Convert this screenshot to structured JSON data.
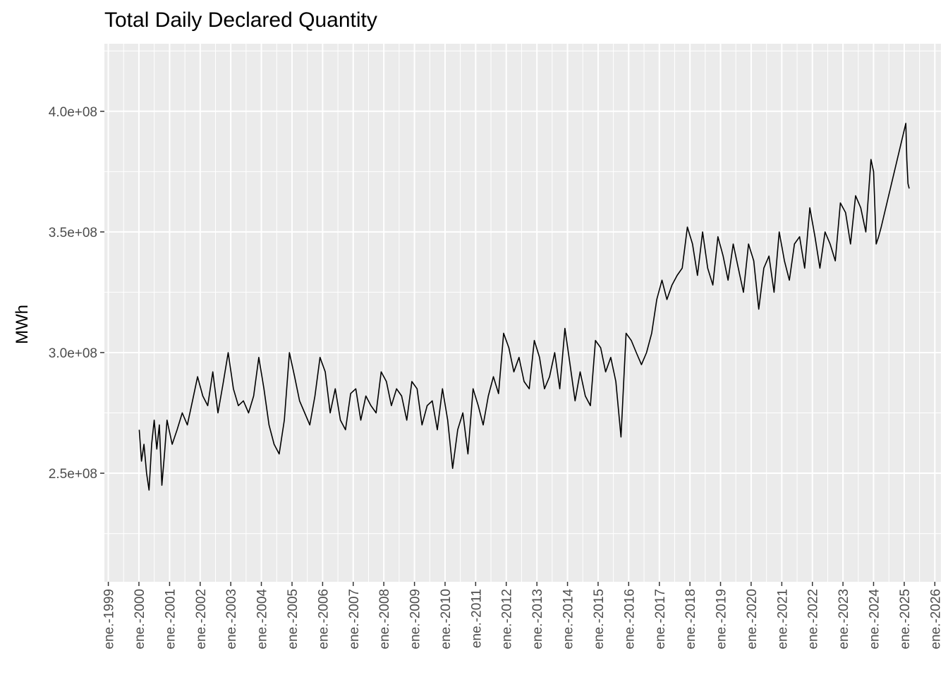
{
  "chart_data": {
    "type": "line",
    "title": "Total Daily Declared Quantity",
    "xlabel": "",
    "ylabel": "MWh",
    "xlim": [
      "1998-11-15",
      "2026-03-15"
    ],
    "ylim": [
      205000000,
      428000000
    ],
    "grid": true,
    "legend": "none",
    "y_ticks": [
      {
        "value": 250000000,
        "label": "2.5e+08"
      },
      {
        "value": 300000000,
        "label": "3.0e+08"
      },
      {
        "value": 350000000,
        "label": "3.5e+08"
      },
      {
        "value": 400000000,
        "label": "4.0e+08"
      }
    ],
    "x_ticks": [
      {
        "date": "1999-01-01",
        "label": "ene.-1999"
      },
      {
        "date": "2000-01-01",
        "label": "ene.-2000"
      },
      {
        "date": "2001-01-01",
        "label": "ene.-2001"
      },
      {
        "date": "2002-01-01",
        "label": "ene.-2002"
      },
      {
        "date": "2003-01-01",
        "label": "ene.-2003"
      },
      {
        "date": "2004-01-01",
        "label": "ene.-2004"
      },
      {
        "date": "2005-01-01",
        "label": "ene.-2005"
      },
      {
        "date": "2006-01-01",
        "label": "ene.-2006"
      },
      {
        "date": "2007-01-01",
        "label": "ene.-2007"
      },
      {
        "date": "2008-01-01",
        "label": "ene.-2008"
      },
      {
        "date": "2009-01-01",
        "label": "ene.-2009"
      },
      {
        "date": "2010-01-01",
        "label": "ene.-2010"
      },
      {
        "date": "2011-01-01",
        "label": "ene.-2011"
      },
      {
        "date": "2012-01-01",
        "label": "ene.-2012"
      },
      {
        "date": "2013-01-01",
        "label": "ene.-2013"
      },
      {
        "date": "2014-01-01",
        "label": "ene.-2014"
      },
      {
        "date": "2015-01-01",
        "label": "ene.-2015"
      },
      {
        "date": "2016-01-01",
        "label": "ene.-2016"
      },
      {
        "date": "2017-01-01",
        "label": "ene.-2017"
      },
      {
        "date": "2018-01-01",
        "label": "ene.-2018"
      },
      {
        "date": "2019-01-01",
        "label": "ene.-2019"
      },
      {
        "date": "2020-01-01",
        "label": "ene.-2020"
      },
      {
        "date": "2021-01-01",
        "label": "ene.-2021"
      },
      {
        "date": "2022-01-01",
        "label": "ene.-2022"
      },
      {
        "date": "2023-01-01",
        "label": "ene.-2023"
      },
      {
        "date": "2024-01-01",
        "label": "ene.-2024"
      },
      {
        "date": "2025-01-01",
        "label": "ene.-2025"
      },
      {
        "date": "2026-01-01",
        "label": "ene.-2026"
      }
    ],
    "series": [
      {
        "color": "#000000",
        "x": [
          "2000-01-05",
          "2000-02-01",
          "2000-03-01",
          "2000-04-01",
          "2000-05-01",
          "2000-06-01",
          "2000-07-01",
          "2000-08-01",
          "2000-09-01",
          "2000-10-01",
          "2000-11-01",
          "2000-12-01",
          "2001-02-01",
          "2001-04-01",
          "2001-06-01",
          "2001-08-01",
          "2001-10-01",
          "2001-12-01",
          "2002-02-01",
          "2002-04-01",
          "2002-06-01",
          "2002-08-01",
          "2002-10-01",
          "2002-12-01",
          "2003-02-01",
          "2003-04-01",
          "2003-06-01",
          "2003-08-01",
          "2003-10-01",
          "2003-12-01",
          "2004-02-01",
          "2004-04-01",
          "2004-06-01",
          "2004-08-01",
          "2004-10-01",
          "2004-12-01",
          "2005-02-01",
          "2005-04-01",
          "2005-06-01",
          "2005-08-01",
          "2005-10-01",
          "2005-12-01",
          "2006-02-01",
          "2006-04-01",
          "2006-06-01",
          "2006-08-01",
          "2006-10-01",
          "2006-12-01",
          "2007-02-01",
          "2007-04-01",
          "2007-06-01",
          "2007-08-01",
          "2007-10-01",
          "2007-12-01",
          "2008-02-01",
          "2008-04-01",
          "2008-06-01",
          "2008-08-01",
          "2008-10-01",
          "2008-12-01",
          "2009-02-01",
          "2009-04-01",
          "2009-06-01",
          "2009-08-01",
          "2009-10-01",
          "2009-12-01",
          "2010-02-01",
          "2010-04-01",
          "2010-06-01",
          "2010-08-01",
          "2010-10-01",
          "2010-12-01",
          "2011-02-01",
          "2011-04-01",
          "2011-06-01",
          "2011-08-01",
          "2011-10-01",
          "2011-12-01",
          "2012-02-01",
          "2012-04-01",
          "2012-06-01",
          "2012-08-01",
          "2012-10-01",
          "2012-12-01",
          "2013-02-01",
          "2013-04-01",
          "2013-06-01",
          "2013-08-01",
          "2013-10-01",
          "2013-12-01",
          "2014-02-01",
          "2014-04-01",
          "2014-06-01",
          "2014-08-01",
          "2014-10-01",
          "2014-12-01",
          "2015-02-01",
          "2015-04-01",
          "2015-06-01",
          "2015-08-01",
          "2015-10-01",
          "2015-12-01",
          "2016-02-01",
          "2016-04-01",
          "2016-06-01",
          "2016-08-01",
          "2016-10-01",
          "2016-12-01",
          "2017-02-01",
          "2017-04-01",
          "2017-06-01",
          "2017-08-01",
          "2017-10-01",
          "2017-12-01",
          "2018-02-01",
          "2018-04-01",
          "2018-06-01",
          "2018-08-01",
          "2018-10-01",
          "2018-12-01",
          "2019-02-01",
          "2019-04-01",
          "2019-06-01",
          "2019-08-01",
          "2019-10-01",
          "2019-12-01",
          "2020-02-01",
          "2020-04-01",
          "2020-06-01",
          "2020-08-01",
          "2020-10-01",
          "2020-12-01",
          "2021-02-01",
          "2021-04-01",
          "2021-06-01",
          "2021-08-01",
          "2021-10-01",
          "2021-12-01",
          "2022-02-01",
          "2022-04-01",
          "2022-06-01",
          "2022-08-01",
          "2022-10-01",
          "2022-12-01",
          "2023-02-01",
          "2023-04-01",
          "2023-06-01",
          "2023-08-01",
          "2023-10-01",
          "2023-12-01",
          "2024-01-01",
          "2024-02-01",
          "2024-03-01",
          "2024-04-01",
          "2025-01-20",
          "2025-02-01",
          "2025-02-15",
          "2025-03-01"
        ],
        "y": [
          268000000,
          255000000,
          262000000,
          250000000,
          243000000,
          262000000,
          272000000,
          260000000,
          270000000,
          245000000,
          258000000,
          272000000,
          262000000,
          268000000,
          275000000,
          270000000,
          280000000,
          290000000,
          282000000,
          278000000,
          292000000,
          275000000,
          287000000,
          300000000,
          285000000,
          278000000,
          280000000,
          275000000,
          282000000,
          298000000,
          285000000,
          270000000,
          262000000,
          258000000,
          272000000,
          300000000,
          290000000,
          280000000,
          275000000,
          270000000,
          282000000,
          298000000,
          292000000,
          275000000,
          285000000,
          272000000,
          268000000,
          283000000,
          285000000,
          272000000,
          282000000,
          278000000,
          275000000,
          292000000,
          288000000,
          278000000,
          285000000,
          282000000,
          272000000,
          288000000,
          285000000,
          270000000,
          278000000,
          280000000,
          268000000,
          285000000,
          272000000,
          252000000,
          268000000,
          275000000,
          258000000,
          285000000,
          278000000,
          270000000,
          282000000,
          290000000,
          283000000,
          308000000,
          302000000,
          292000000,
          298000000,
          288000000,
          285000000,
          305000000,
          298000000,
          285000000,
          290000000,
          300000000,
          285000000,
          310000000,
          295000000,
          280000000,
          292000000,
          282000000,
          278000000,
          305000000,
          302000000,
          292000000,
          298000000,
          288000000,
          265000000,
          308000000,
          305000000,
          300000000,
          295000000,
          300000000,
          308000000,
          322000000,
          330000000,
          322000000,
          328000000,
          332000000,
          335000000,
          352000000,
          345000000,
          332000000,
          350000000,
          335000000,
          328000000,
          348000000,
          340000000,
          330000000,
          345000000,
          335000000,
          325000000,
          345000000,
          338000000,
          318000000,
          335000000,
          340000000,
          325000000,
          350000000,
          338000000,
          330000000,
          345000000,
          348000000,
          335000000,
          360000000,
          348000000,
          335000000,
          350000000,
          345000000,
          338000000,
          362000000,
          358000000,
          345000000,
          365000000,
          360000000,
          350000000,
          380000000,
          375000000,
          345000000,
          348000000,
          352000000,
          395000000,
          380000000,
          370000000,
          368000000
        ]
      }
    ]
  }
}
